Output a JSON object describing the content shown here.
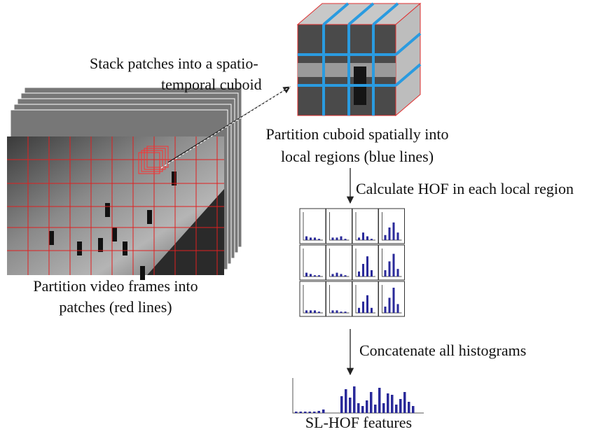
{
  "labels": {
    "stack": {
      "lines": [
        "Stack patches into a spatio-",
        "temporal cuboid"
      ]
    },
    "partition_cuboid": {
      "lines": [
        "Partition cuboid spatially into",
        "local regions (blue lines)"
      ]
    },
    "calculate": {
      "text": "Calculate HOF in each local region"
    },
    "partition_frames": {
      "lines": [
        "Partition video frames into",
        "patches (red lines)"
      ]
    },
    "concatenate": {
      "text": "Concatenate all histograms"
    },
    "result": {
      "text": "SL-HOF features"
    }
  }
}
